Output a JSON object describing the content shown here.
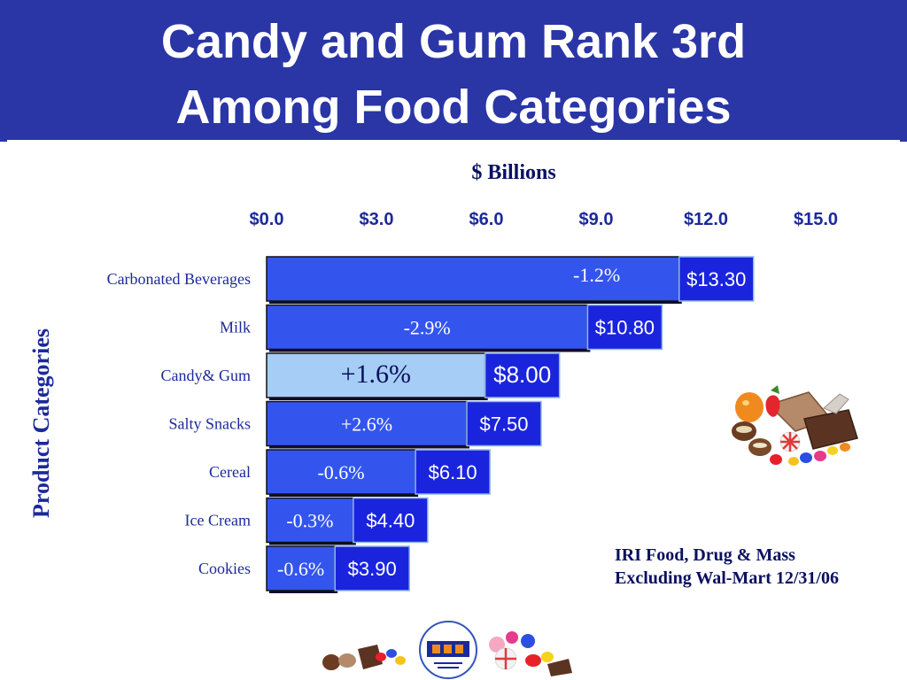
{
  "title": {
    "line1": "Candy and Gum Rank 3rd",
    "line2": "Among Food Categories"
  },
  "chart_data": {
    "type": "bar",
    "orientation": "horizontal",
    "xlabel": "$ Billions",
    "ylabel": "Product Categories",
    "xlim": [
      0,
      15
    ],
    "ticks": [
      "$0.0",
      "$3.0",
      "$6.0",
      "$9.0",
      "$12.0",
      "$15.0"
    ],
    "tick_values": [
      0,
      3,
      6,
      9,
      12,
      15
    ],
    "ticks_position": "top",
    "grid": false,
    "categories": [
      "Carbonated Beverages",
      "Milk",
      "Candy& Gum",
      "Salty Snacks",
      "Cereal",
      "Ice Cream",
      "Cookies"
    ],
    "values": [
      13.3,
      10.8,
      8.0,
      7.5,
      6.1,
      4.4,
      3.9
    ],
    "value_labels": [
      "$13.30",
      "$10.80",
      "$8.00",
      "$7.50",
      "$6.10",
      "$4.40",
      "$3.90"
    ],
    "pct_change_labels": [
      "-1.2%",
      "-2.9%",
      "+1.6%",
      "+2.6%",
      "-0.6%",
      "-0.3%",
      "-0.6%"
    ],
    "highlight_category": "Candy& Gum",
    "colors": {
      "bar": "#3355ee",
      "highlight_bar": "#a6cdf5",
      "value_box": "#1a24dd"
    }
  },
  "source": {
    "line1": "IRI Food, Drug & Mass",
    "line2": "Excluding Wal-Mart 12/31/06"
  },
  "images": {
    "candy": "candy-assortment-image",
    "logo": "nca-logo"
  },
  "theme": {
    "title_band": "#2a35a6",
    "label_text": "#1b2a99",
    "dark_text": "#0a1060"
  }
}
